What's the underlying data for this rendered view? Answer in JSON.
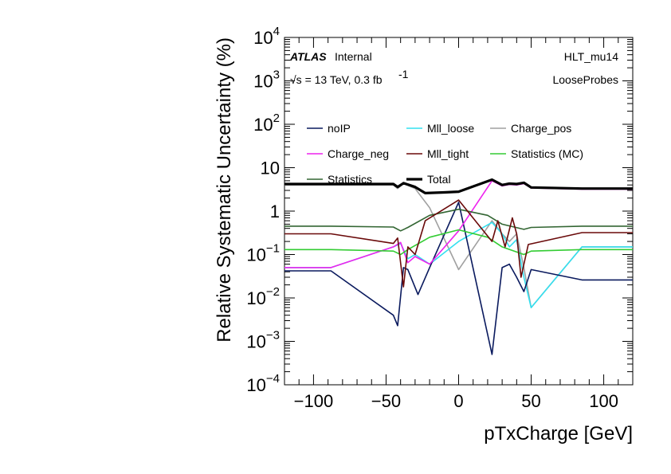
{
  "chart_data": {
    "type": "line",
    "xlabel": "pTxCharge [GeV]",
    "ylabel": "Relative Systematic Uncertainty (%)",
    "xlim": [
      -120,
      120
    ],
    "ylim": [
      0.0001,
      10000
    ],
    "yscale": "log",
    "xticks": [
      -100,
      -50,
      0,
      50,
      100
    ],
    "xtick_labels": [
      "−100",
      "−50",
      "0",
      "50",
      "100"
    ],
    "yticks": [
      0.0001,
      0.001,
      0.01,
      0.1,
      1,
      10,
      100,
      1000,
      10000
    ],
    "ytick_labels": [
      {
        "base": "10",
        "exp": "−4"
      },
      {
        "base": "10",
        "exp": "−3"
      },
      {
        "base": "10",
        "exp": "−2"
      },
      {
        "base": "10",
        "exp": "−1"
      },
      {
        "base": "1",
        "exp": ""
      },
      {
        "base": "10",
        "exp": ""
      },
      {
        "base": "10",
        "exp": "2"
      },
      {
        "base": "10",
        "exp": "3"
      },
      {
        "base": "10",
        "exp": "4"
      }
    ],
    "annotations": {
      "atlas": "ATLAS",
      "internal": "Internal",
      "energy_text": "√s = 13 TeV, 0.3 fb",
      "energy_sup": "-1",
      "trigger": "HLT_mu14",
      "selection": "LooseProbes"
    },
    "legend_placement": "top",
    "series": [
      {
        "name": "noIP",
        "color": "#0a1a5e",
        "width": 1.6,
        "x": [
          -120,
          -88,
          -45,
          -42,
          -38,
          -35,
          -28,
          -20,
          0,
          23,
          30,
          35,
          40,
          45,
          50,
          85,
          120
        ],
        "y": [
          0.042,
          0.042,
          0.004,
          0.0023,
          0.05,
          0.045,
          0.012,
          0.05,
          1.6,
          0.0005,
          0.05,
          0.06,
          0.03,
          0.014,
          0.045,
          0.026,
          0.026
        ]
      },
      {
        "name": "Mll_loose",
        "color": "#33e0f0",
        "width": 1.6,
        "x": [
          -120,
          -88,
          -45,
          -40,
          -35,
          -30,
          -20,
          0,
          23,
          30,
          35,
          40,
          45,
          50,
          85,
          120
        ],
        "y": [
          0.05,
          0.05,
          0.15,
          0.18,
          0.08,
          0.1,
          0.06,
          0.2,
          0.55,
          0.3,
          0.15,
          0.22,
          0.03,
          0.006,
          0.15,
          0.15
        ]
      },
      {
        "name": "Charge_pos",
        "color": "#a0a0a0",
        "width": 1.6,
        "x": [
          -120,
          -88,
          -45,
          -42,
          -38,
          -30,
          -20,
          0,
          23,
          30,
          35,
          40,
          45,
          50,
          85,
          120
        ],
        "y": [
          4.0,
          4.0,
          4.0,
          3.3,
          4.3,
          3.3,
          1.2,
          0.045,
          0.6,
          0.3,
          0.2,
          0.3,
          0.05,
          0.006,
          0.15,
          0.15
        ]
      },
      {
        "name": "Charge_neg",
        "color": "#ee22ee",
        "width": 1.6,
        "x": [
          -120,
          -88,
          -45,
          -40,
          -35,
          -30,
          -20,
          0,
          23,
          30,
          35,
          40,
          45,
          50,
          85,
          120
        ],
        "y": [
          0.05,
          0.05,
          0.15,
          0.19,
          0.065,
          0.09,
          0.06,
          0.35,
          5.0,
          3.8,
          4.1,
          4.0,
          4.3,
          3.4,
          3.2,
          3.2
        ]
      },
      {
        "name": "Mll_tight",
        "color": "#6a0a0a",
        "width": 1.6,
        "x": [
          -120,
          -88,
          -45,
          -42,
          -38,
          -35,
          -30,
          -23,
          0,
          23,
          27,
          32,
          37,
          40,
          43,
          48,
          85,
          120
        ],
        "y": [
          0.3,
          0.3,
          0.18,
          0.24,
          0.018,
          0.15,
          0.1,
          0.6,
          1.8,
          0.2,
          0.6,
          0.15,
          0.7,
          0.3,
          0.03,
          0.17,
          0.32,
          0.32
        ]
      },
      {
        "name": "Statistics (MC)",
        "color": "#33cc33",
        "width": 1.6,
        "x": [
          -120,
          -88,
          -45,
          -40,
          -35,
          -20,
          0,
          20,
          30,
          45,
          50,
          85,
          120
        ],
        "y": [
          0.13,
          0.13,
          0.12,
          0.1,
          0.13,
          0.25,
          0.37,
          0.25,
          0.15,
          0.1,
          0.12,
          0.13,
          0.13
        ]
      },
      {
        "name": "Statistics",
        "color": "#336633",
        "width": 1.6,
        "x": [
          -120,
          -88,
          -45,
          -40,
          -35,
          -20,
          0,
          20,
          30,
          45,
          50,
          85,
          120
        ],
        "y": [
          0.45,
          0.45,
          0.43,
          0.35,
          0.42,
          0.8,
          1.1,
          0.8,
          0.5,
          0.38,
          0.42,
          0.45,
          0.45
        ]
      },
      {
        "name": "Total",
        "color": "#000000",
        "width": 3.2,
        "x": [
          -120,
          -88,
          -45,
          -42,
          -38,
          -35,
          -30,
          -23,
          -10,
          0,
          23,
          30,
          35,
          40,
          45,
          50,
          85,
          120
        ],
        "y": [
          4.2,
          4.2,
          4.2,
          3.6,
          4.4,
          4.1,
          3.6,
          2.6,
          2.7,
          2.8,
          5.3,
          4.0,
          4.3,
          4.2,
          4.5,
          3.5,
          3.3,
          3.3
        ]
      }
    ]
  }
}
